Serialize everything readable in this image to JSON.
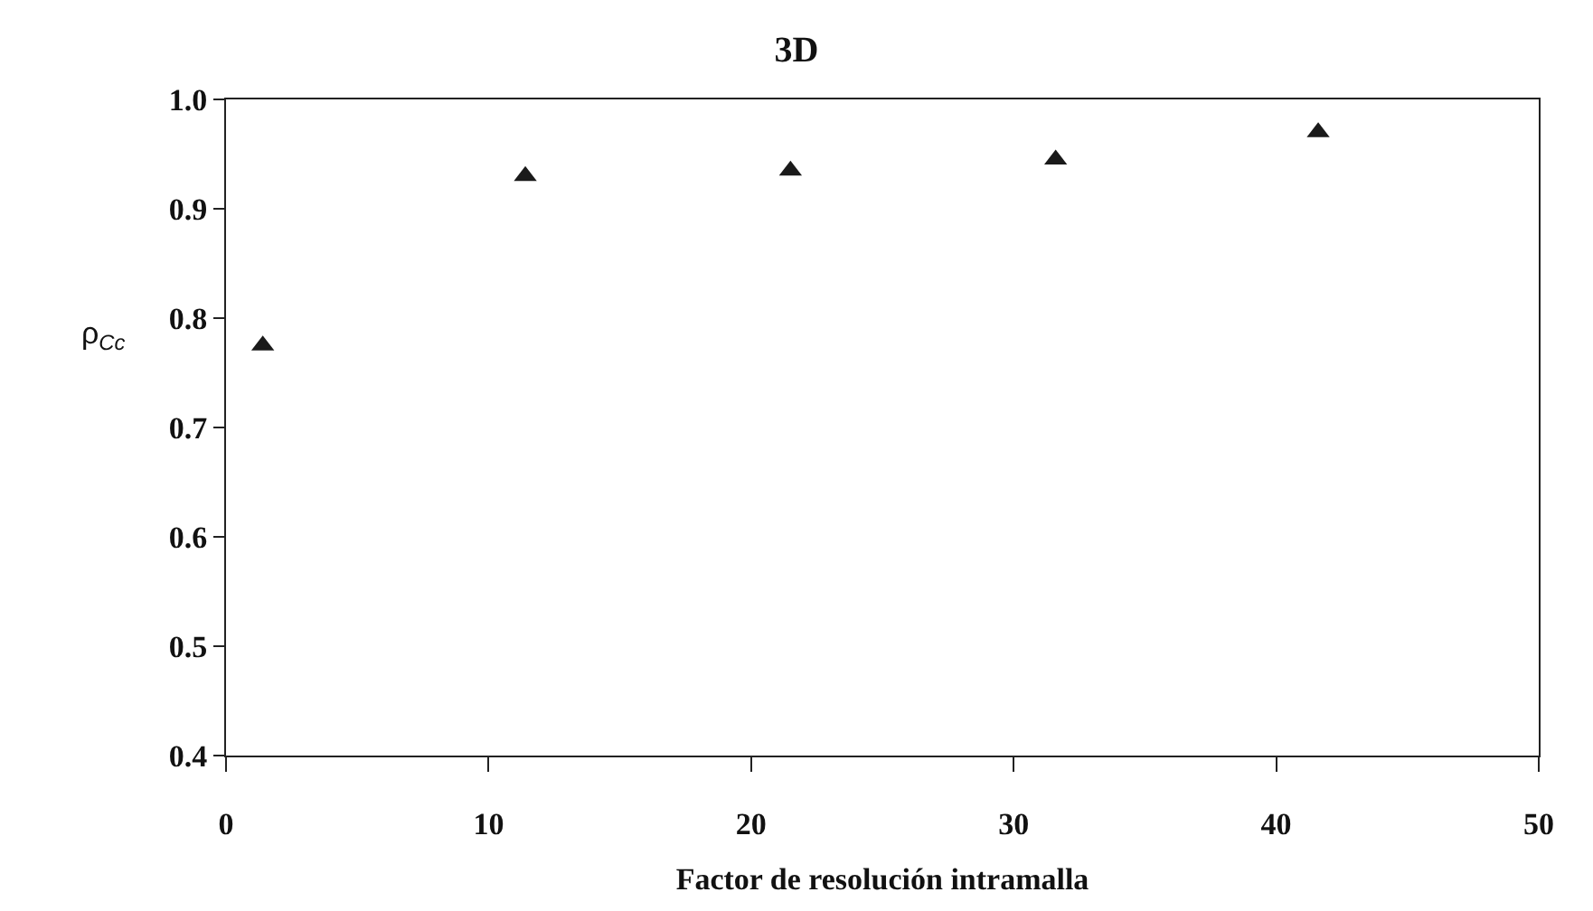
{
  "chart_data": {
    "type": "scatter",
    "title": "3D",
    "xlabel": "Factor de resolución intramalla",
    "ylabel": "ρ$_{Cc}$",
    "x": [
      1.4,
      11.4,
      21.5,
      31.6,
      41.6
    ],
    "series": [
      {
        "color": "#1a1a1a",
        "values": [
          0.775,
          0.93,
          0.935,
          0.945,
          0.97
        ]
      }
    ],
    "marker": "triangle",
    "xlim": [
      0,
      50
    ],
    "xticks": [
      0,
      10,
      20,
      30,
      40,
      50
    ],
    "ylim": [
      0.4,
      1.0
    ],
    "yticks": [
      0.4,
      0.5,
      0.6,
      0.7,
      0.8,
      0.9,
      {
        "value": 1.0,
        "label": "1.0"
      }
    ]
  }
}
